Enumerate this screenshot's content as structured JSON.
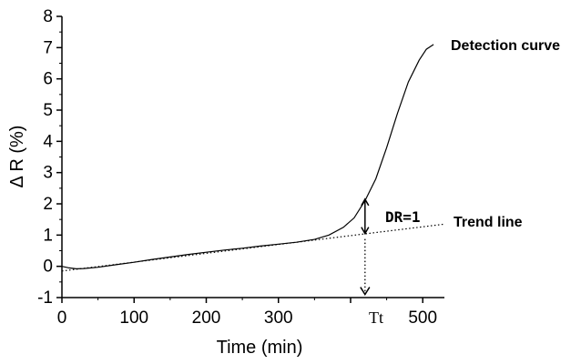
{
  "chart_data": {
    "type": "line",
    "xlabel": "Time (min)",
    "ylabel": "Δ R (%)",
    "xlim": [
      0,
      530
    ],
    "ylim": [
      -1,
      8
    ],
    "x_ticks": [
      0,
      100,
      200,
      300,
      500
    ],
    "y_ticks": [
      -1,
      0,
      1,
      2,
      3,
      4,
      5,
      6,
      7,
      8
    ],
    "series": [
      {
        "name": "Detection curve",
        "style": "solid",
        "points": [
          [
            0,
            0.0
          ],
          [
            10,
            -0.05
          ],
          [
            20,
            -0.08
          ],
          [
            30,
            -0.07
          ],
          [
            50,
            -0.03
          ],
          [
            75,
            0.05
          ],
          [
            100,
            0.13
          ],
          [
            125,
            0.22
          ],
          [
            150,
            0.3
          ],
          [
            175,
            0.38
          ],
          [
            200,
            0.45
          ],
          [
            225,
            0.52
          ],
          [
            250,
            0.58
          ],
          [
            275,
            0.65
          ],
          [
            300,
            0.71
          ],
          [
            325,
            0.77
          ],
          [
            350,
            0.86
          ],
          [
            370,
            1.0
          ],
          [
            390,
            1.25
          ],
          [
            405,
            1.55
          ],
          [
            420,
            2.1
          ],
          [
            435,
            2.8
          ],
          [
            450,
            3.8
          ],
          [
            465,
            4.9
          ],
          [
            480,
            5.9
          ],
          [
            495,
            6.6
          ],
          [
            505,
            6.95
          ],
          [
            515,
            7.1
          ]
        ]
      },
      {
        "name": "Trend line",
        "style": "dotted",
        "points": [
          [
            0,
            -0.15
          ],
          [
            530,
            1.35
          ]
        ]
      }
    ],
    "annotations": {
      "detection_label": "Detection curve",
      "trend_label": "Trend line",
      "dr_label": "DR=1",
      "tt_label": "Tt",
      "tt_x": 420,
      "dr_top_y": 2.15,
      "dr_bottom_y": 1.05
    }
  }
}
